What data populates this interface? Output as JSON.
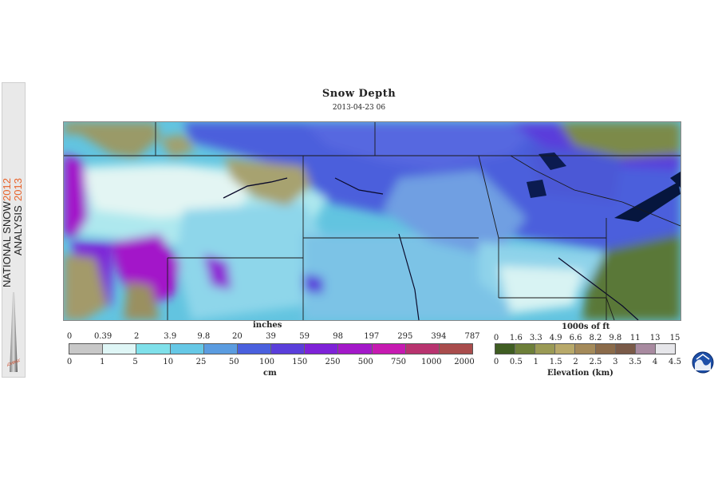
{
  "banner": {
    "text_main": "NATIONAL SNOW",
    "text_year1": "2012",
    "text_sub": "ANALYSIS",
    "text_year2": "2013",
    "logo": "NOHRSC"
  },
  "header": {
    "title": "Snow Depth",
    "date": "2013-04-23 06"
  },
  "snow_legend": {
    "top_unit": "inches",
    "top_labels": [
      "0",
      "0.39",
      "2",
      "3.9",
      "9.8",
      "20",
      "39",
      "59",
      "98",
      "197",
      "295",
      "394",
      "787"
    ],
    "bottom_unit": "cm",
    "bottom_labels": [
      "0",
      "1",
      "5",
      "10",
      "25",
      "50",
      "100",
      "150",
      "250",
      "500",
      "750",
      "1000",
      "2000"
    ],
    "colors": [
      "#c8c8c8",
      "#dff6f6",
      "#7fe0ea",
      "#66c8e6",
      "#5b9ce0",
      "#4a60de",
      "#5a3edb",
      "#7e22d8",
      "#a319c9",
      "#c61ab1",
      "#b8336f",
      "#a94c4c"
    ]
  },
  "elev_legend": {
    "top_unit": "1000s of ft",
    "top_labels": [
      "0",
      "1.6",
      "3.3",
      "4.9",
      "6.6",
      "8.2",
      "9.8",
      "11",
      "13",
      "15"
    ],
    "bottom_unit": "Elevation (km)",
    "bottom_labels": [
      "0",
      "0.5",
      "1",
      "1.5",
      "2",
      "2.5",
      "3",
      "3.5",
      "4",
      "4.5"
    ],
    "colors": [
      "#3f5d22",
      "#6d7f39",
      "#9a9a55",
      "#b8a96a",
      "#a48a5a",
      "#8b6b4a",
      "#7a5a48",
      "#a88aa0",
      "#e6e6ea"
    ]
  },
  "icons": {
    "noaa": "noaa-logo-icon"
  }
}
